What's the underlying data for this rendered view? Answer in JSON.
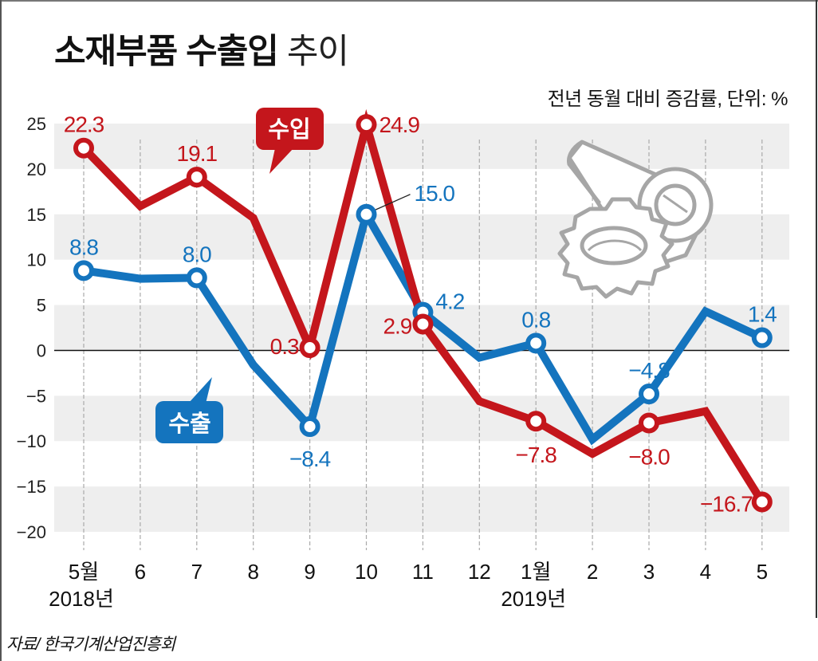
{
  "header": {
    "title_bold": "소재부품 수출입",
    "title_light": "추이",
    "unit_note": "전년 동월 대비 증감률, 단위: %"
  },
  "footer": {
    "source": "자료/ 한국기계산업진흥회"
  },
  "colors": {
    "import": "#c4161c",
    "export": "#1474be",
    "band": "#eeeeee",
    "gridline": "#aaaaaa",
    "zero_line": "#111111",
    "illustration": "#a6a6a6"
  },
  "illustration": {
    "icon": "gear-and-roller-icon"
  },
  "chart_data": {
    "type": "line",
    "title": "소재부품 수출입 추이",
    "subtitle": "전년 동월 대비 증감률, 단위: %",
    "xlabel": "",
    "ylabel": "",
    "ylim": [
      -20,
      25
    ],
    "yticks": [
      25,
      20,
      15,
      10,
      5,
      0,
      -5,
      -10,
      -15,
      -20
    ],
    "ytick_labels": [
      "25",
      "20",
      "15",
      "10",
      "5",
      "0",
      "−5",
      "−10",
      "−15",
      "−20"
    ],
    "categories": [
      "5월",
      "6",
      "7",
      "8",
      "9",
      "10",
      "11",
      "12",
      "1월",
      "2",
      "3",
      "4",
      "5"
    ],
    "year_labels": [
      {
        "category_index": 0,
        "label": "2018년"
      },
      {
        "category_index": 8,
        "label": "2019년"
      }
    ],
    "grid": "horizontal bands + vertical dashed lines",
    "series": [
      {
        "name": "수입",
        "color": "#c4161c",
        "values": [
          22.3,
          15.9,
          19.1,
          14.6,
          0.3,
          24.9,
          2.9,
          -5.6,
          -7.8,
          -11.4,
          -8.0,
          -6.7,
          -16.7
        ],
        "labeled": [
          true,
          false,
          true,
          false,
          true,
          true,
          true,
          false,
          true,
          false,
          true,
          false,
          true
        ],
        "labels": [
          "22.3",
          "",
          "19.1",
          "",
          "0.3",
          "24.9",
          "2.9",
          "",
          "−7.8",
          "",
          "−8.0",
          "",
          "−16.7"
        ]
      },
      {
        "name": "수출",
        "color": "#1474be",
        "values": [
          8.8,
          7.9,
          8.0,
          -1.6,
          -8.4,
          15.0,
          4.2,
          -0.8,
          0.8,
          -9.8,
          -4.8,
          4.3,
          1.4
        ],
        "labeled": [
          true,
          false,
          true,
          false,
          true,
          true,
          true,
          false,
          true,
          false,
          true,
          false,
          true
        ],
        "labels": [
          "8.8",
          "",
          "8.0",
          "",
          "−8.4",
          "15.0",
          "4.2",
          "",
          "0.8",
          "",
          "−4.8",
          "",
          "1.4"
        ]
      }
    ],
    "legend": [
      {
        "label": "수입",
        "placement": "callout near top center"
      },
      {
        "label": "수출",
        "placement": "callout near bottom left"
      }
    ]
  }
}
